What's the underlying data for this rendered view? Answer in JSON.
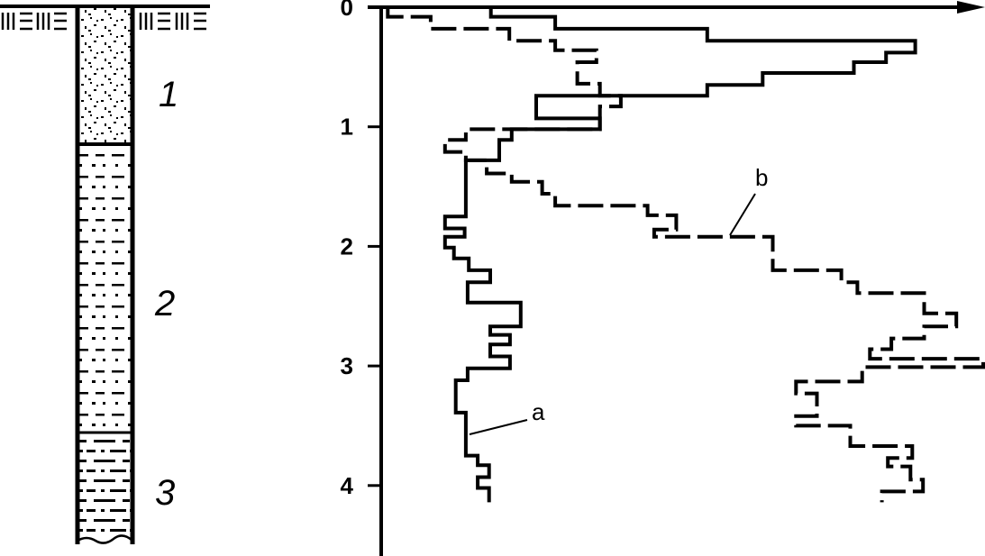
{
  "borehole": {
    "layers": [
      {
        "label": "1",
        "pattern": "dots",
        "top": 0,
        "bottom": 1.16
      },
      {
        "label": "2",
        "pattern": "dashes-dots",
        "top": 1.16,
        "bottom": 3.56
      },
      {
        "label": "3",
        "pattern": "dashes",
        "top": 3.56,
        "bottom": 4.48
      }
    ]
  },
  "chart_data": {
    "type": "line",
    "step": true,
    "title": "",
    "xlabel": "",
    "ylabel": "",
    "y_axis_inverted": true,
    "ylim": [
      0,
      4.6
    ],
    "xlim": [
      0,
      101
    ],
    "y_ticks": [
      "0",
      "1",
      "2",
      "3",
      "4"
    ],
    "x_ticks": [],
    "grid": false,
    "color": "#000000",
    "series": [
      {
        "name": "a",
        "style": "solid",
        "points": [
          [
            18.4,
            0
          ],
          [
            18.4,
            0.08
          ],
          [
            29.2,
            0.08
          ],
          [
            29.2,
            0.18
          ],
          [
            54.7,
            0.18
          ],
          [
            54.7,
            0.28
          ],
          [
            89.6,
            0.28
          ],
          [
            89.6,
            0.38
          ],
          [
            84.7,
            0.38
          ],
          [
            84.7,
            0.46
          ],
          [
            79.3,
            0.46
          ],
          [
            79.3,
            0.55
          ],
          [
            64.0,
            0.55
          ],
          [
            64.0,
            0.65
          ],
          [
            54.7,
            0.65
          ],
          [
            54.7,
            0.74
          ],
          [
            26.0,
            0.74
          ],
          [
            26.0,
            0.93
          ],
          [
            36.7,
            0.93
          ],
          [
            36.7,
            1.02
          ],
          [
            21.9,
            1.02
          ],
          [
            21.9,
            1.11
          ],
          [
            19.8,
            1.11
          ],
          [
            19.8,
            1.28
          ],
          [
            14.2,
            1.28
          ],
          [
            14.2,
            1.75
          ],
          [
            10.7,
            1.75
          ],
          [
            10.7,
            1.85
          ],
          [
            14.0,
            1.85
          ],
          [
            14.0,
            1.92
          ],
          [
            10.7,
            1.92
          ],
          [
            10.7,
            2.01
          ],
          [
            12.2,
            2.01
          ],
          [
            12.2,
            2.1
          ],
          [
            14.7,
            2.1
          ],
          [
            14.7,
            2.2
          ],
          [
            18.3,
            2.2
          ],
          [
            18.3,
            2.3
          ],
          [
            14.5,
            2.3
          ],
          [
            14.5,
            2.47
          ],
          [
            23.4,
            2.47
          ],
          [
            23.4,
            2.67
          ],
          [
            18.3,
            2.67
          ],
          [
            18.3,
            2.74
          ],
          [
            21.6,
            2.74
          ],
          [
            21.6,
            2.82
          ],
          [
            18.3,
            2.82
          ],
          [
            18.3,
            2.92
          ],
          [
            21.6,
            2.92
          ],
          [
            21.6,
            3.02
          ],
          [
            14.5,
            3.02
          ],
          [
            14.5,
            3.12
          ],
          [
            12.5,
            3.12
          ],
          [
            12.5,
            3.39
          ],
          [
            14.2,
            3.39
          ],
          [
            14.2,
            3.75
          ],
          [
            16.2,
            3.75
          ],
          [
            16.2,
            3.83
          ],
          [
            18.1,
            3.83
          ],
          [
            18.1,
            3.93
          ],
          [
            16.2,
            3.93
          ],
          [
            16.2,
            4.02
          ],
          [
            18.1,
            4.02
          ],
          [
            18.1,
            4.14
          ]
        ]
      },
      {
        "name": "b",
        "style": "dashed",
        "points": [
          [
            1.1,
            0
          ],
          [
            1.1,
            0.08
          ],
          [
            8.3,
            0.08
          ],
          [
            8.3,
            0.18
          ],
          [
            21.5,
            0.18
          ],
          [
            21.5,
            0.28
          ],
          [
            29.2,
            0.28
          ],
          [
            29.2,
            0.36
          ],
          [
            36.1,
            0.36
          ],
          [
            36.1,
            0.46
          ],
          [
            32.9,
            0.46
          ],
          [
            32.9,
            0.64
          ],
          [
            36.7,
            0.64
          ],
          [
            36.7,
            0.74
          ],
          [
            40.2,
            0.74
          ],
          [
            40.2,
            0.83
          ],
          [
            36.7,
            0.83
          ],
          [
            36.7,
            1.02
          ],
          [
            14.2,
            1.02
          ],
          [
            14.2,
            1.11
          ],
          [
            10.7,
            1.11
          ],
          [
            10.7,
            1.21
          ],
          [
            14.2,
            1.21
          ],
          [
            14.2,
            1.28
          ],
          [
            17.7,
            1.28
          ],
          [
            17.7,
            1.39
          ],
          [
            21.9,
            1.39
          ],
          [
            21.9,
            1.46
          ],
          [
            27.0,
            1.46
          ],
          [
            27.0,
            1.56
          ],
          [
            29.2,
            1.56
          ],
          [
            29.2,
            1.66
          ],
          [
            44.7,
            1.66
          ],
          [
            44.7,
            1.74
          ],
          [
            49.5,
            1.74
          ],
          [
            49.5,
            1.86
          ],
          [
            45.8,
            1.86
          ],
          [
            45.8,
            1.92
          ],
          [
            65.7,
            1.92
          ],
          [
            65.7,
            2.2
          ],
          [
            77.2,
            2.2
          ],
          [
            77.2,
            2.3
          ],
          [
            79.9,
            2.3
          ],
          [
            79.9,
            2.39
          ],
          [
            91.1,
            2.39
          ],
          [
            91.1,
            2.56
          ],
          [
            96.5,
            2.56
          ],
          [
            96.5,
            2.67
          ],
          [
            91.1,
            2.67
          ],
          [
            91.1,
            2.77
          ],
          [
            85.6,
            2.77
          ],
          [
            85.6,
            2.86
          ],
          [
            82.0,
            2.86
          ],
          [
            82.0,
            2.94
          ],
          [
            101,
            2.94
          ],
          [
            101,
            3.01
          ],
          [
            80.7,
            3.01
          ],
          [
            80.7,
            3.13
          ],
          [
            69.6,
            3.13
          ],
          [
            69.6,
            3.23
          ],
          [
            73.1,
            3.23
          ],
          [
            73.1,
            3.42
          ],
          [
            69.6,
            3.42
          ],
          [
            69.6,
            3.5
          ],
          [
            78.7,
            3.5
          ],
          [
            78.7,
            3.67
          ],
          [
            89.1,
            3.67
          ],
          [
            89.1,
            3.77
          ],
          [
            85.0,
            3.77
          ],
          [
            85.0,
            3.84
          ],
          [
            88.8,
            3.84
          ],
          [
            88.8,
            3.95
          ],
          [
            90.9,
            3.95
          ],
          [
            90.9,
            4.05
          ],
          [
            84.0,
            4.05
          ],
          [
            84.0,
            4.14
          ]
        ]
      }
    ],
    "annotations": [
      {
        "text": "a",
        "series": "a",
        "at": [
          14.2,
          3.58
        ]
      },
      {
        "text": "b",
        "series": "b",
        "at": [
          58.6,
          1.9
        ]
      }
    ]
  }
}
